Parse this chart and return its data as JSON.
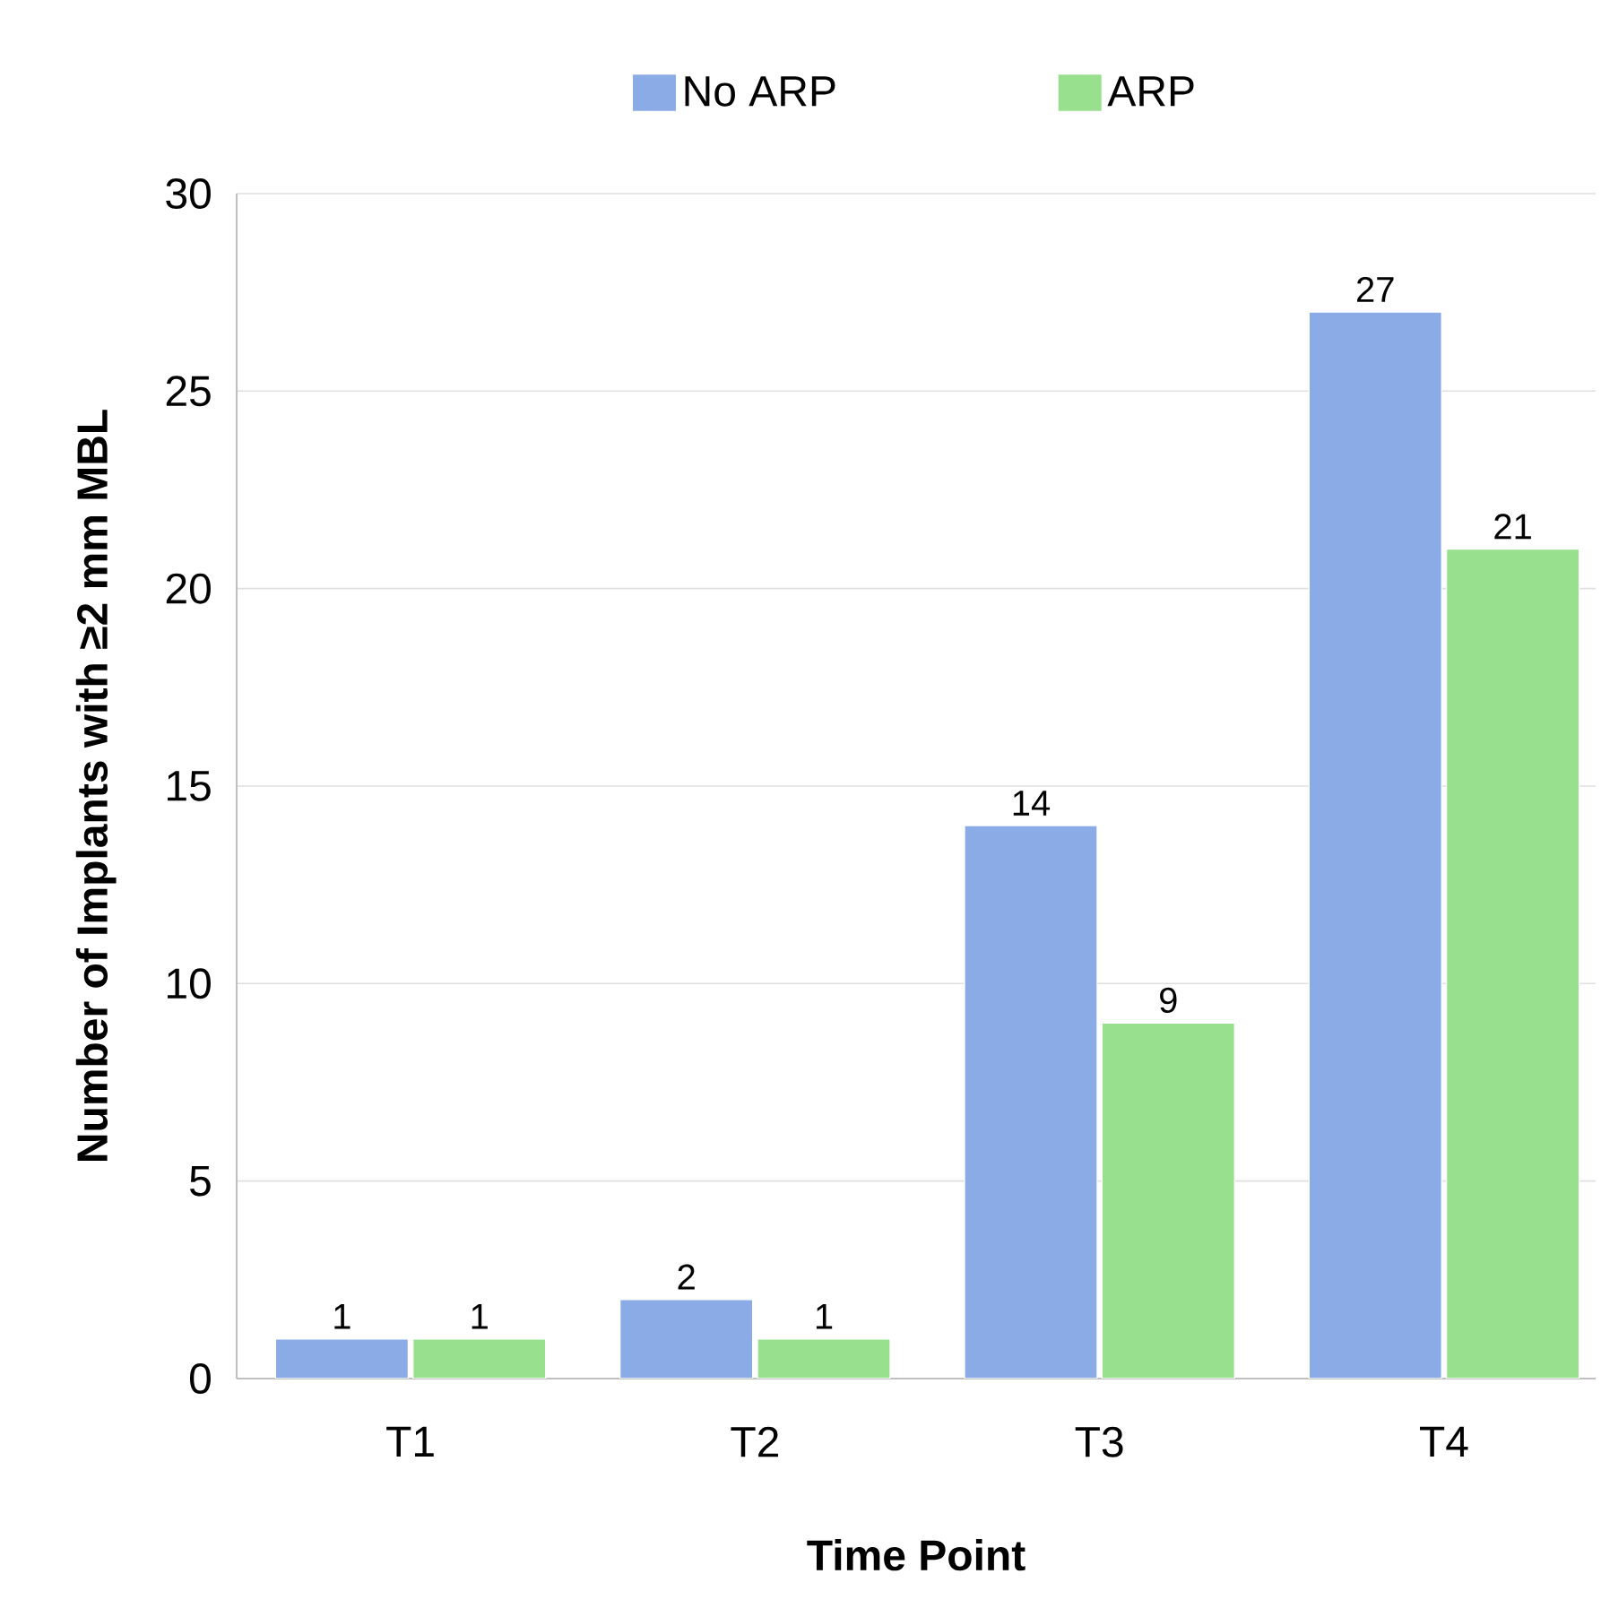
{
  "chart_data": {
    "type": "bar",
    "xlabel": "Time Point",
    "ylabel": "Number of Implants with ≥2 mm MBL",
    "categories": [
      "T1",
      "T2",
      "T3",
      "T4"
    ],
    "series": [
      {
        "name": "No ARP",
        "color": "#8aabe6",
        "values": [
          1,
          2,
          14,
          27
        ]
      },
      {
        "name": "ARP",
        "color": "#98e08e",
        "values": [
          1,
          1,
          9,
          21
        ]
      }
    ],
    "ylim": [
      0,
      30
    ],
    "yticks": [
      0,
      5,
      10,
      15,
      20,
      25,
      30
    ],
    "grid": "y",
    "legend": "top",
    "data_labels": true
  }
}
